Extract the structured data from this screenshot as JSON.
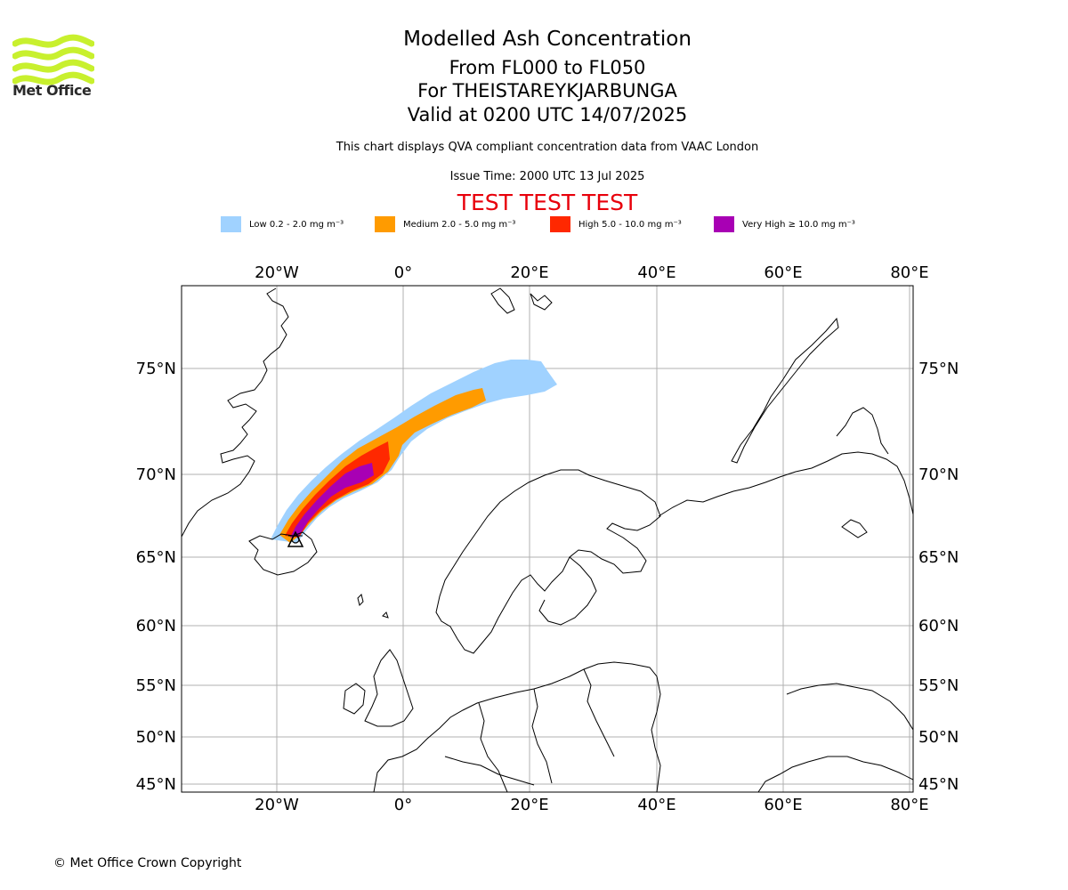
{
  "branding": {
    "logo_text": "Met Office",
    "logo_color": "#c8f02e"
  },
  "title": {
    "line1": "Modelled Ash Concentration",
    "line2": "From FL000 to FL050",
    "line3": "For THEISTAREYKJARBUNGA",
    "line4": "Valid at 0200 UTC 14/07/2025"
  },
  "subtitle": "This chart displays QVA compliant concentration data from VAAC London",
  "issue_time": "Issue Time: 2000 UTC 13 Jul 2025",
  "test_banner": "TEST TEST TEST",
  "legend": [
    {
      "label": "Low 0.2 - 2.0 mg m⁻³",
      "color": "#a0d2ff"
    },
    {
      "label": "Medium 2.0 - 5.0 mg m⁻³",
      "color": "#ff9b00"
    },
    {
      "label": "High 5.0 - 10.0 mg m⁻³",
      "color": "#ff2800"
    },
    {
      "label": "Very High  ≥  10.0 mg m⁻³",
      "color": "#a800b4"
    }
  ],
  "map": {
    "lon_ticks": [
      "20°W",
      "0°",
      "20°E",
      "40°E",
      "60°E",
      "80°E"
    ],
    "lat_ticks": [
      "75°N",
      "70°N",
      "65°N",
      "60°N",
      "55°N",
      "50°N",
      "45°N"
    ],
    "volcano_marker": "triangle"
  },
  "copyright": "© Met Office Crown Copyright"
}
